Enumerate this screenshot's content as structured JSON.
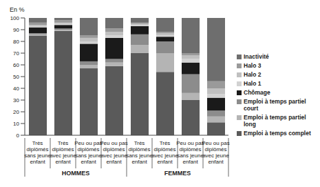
{
  "chart_data": {
    "type": "bar",
    "stacked": true,
    "ylabel": "En %",
    "categories": [
      "Très diplômés sans jeune enfant",
      "Très diplômés avec jeune enfant",
      "Peu ou pas diplômés sans jeune enfant",
      "Peu ou pas diplômés avec jeune enfant",
      "Très diplômés sans jeune enfant",
      "Très diplômés avec jeune enfant",
      "Peu ou pas diplômés sans jeune enfant",
      "Peu ou pas diplômés avec jeune enfant"
    ],
    "groups": [
      {
        "name": "HOMMES",
        "count": 4
      },
      {
        "name": "FEMMES",
        "count": 4
      }
    ],
    "series": [
      {
        "name": "Emploi à temps complet",
        "color": "#5a5a5a",
        "values": [
          85,
          89,
          57,
          59,
          70,
          54,
          30,
          11
        ]
      },
      {
        "name": "Emploi à temps partiel long",
        "color": "#b4b4b4",
        "values": [
          1,
          1,
          3,
          3,
          7,
          16,
          6,
          5
        ]
      },
      {
        "name": "Emploi à temps partiel court",
        "color": "#8c8c8c",
        "values": [
          1,
          1,
          3,
          3,
          9,
          10,
          16,
          5
        ]
      },
      {
        "name": "Chômage",
        "color": "#1a1a1a",
        "values": [
          5,
          3,
          15,
          18,
          7,
          4,
          10,
          11
        ]
      },
      {
        "name": "Halo 1",
        "color": "#d2d2d2",
        "values": [
          1,
          1,
          2,
          2,
          1,
          1,
          3,
          3
        ]
      },
      {
        "name": "Halo 2",
        "color": "#c0c0c0",
        "values": [
          1,
          1,
          3,
          3,
          1,
          2,
          3,
          5
        ]
      },
      {
        "name": "Halo 3",
        "color": "#9a9a9a",
        "values": [
          2,
          2,
          2,
          3,
          1,
          1,
          2,
          6
        ]
      },
      {
        "name": "Inactivité",
        "color": "#6e6e6e",
        "values": [
          4,
          2,
          15,
          9,
          4,
          12,
          30,
          54
        ]
      }
    ],
    "ylim": [
      0,
      100
    ],
    "yticks": [
      0,
      10,
      20,
      30,
      40,
      50,
      60,
      70,
      80,
      90,
      100
    ],
    "grid": false
  }
}
